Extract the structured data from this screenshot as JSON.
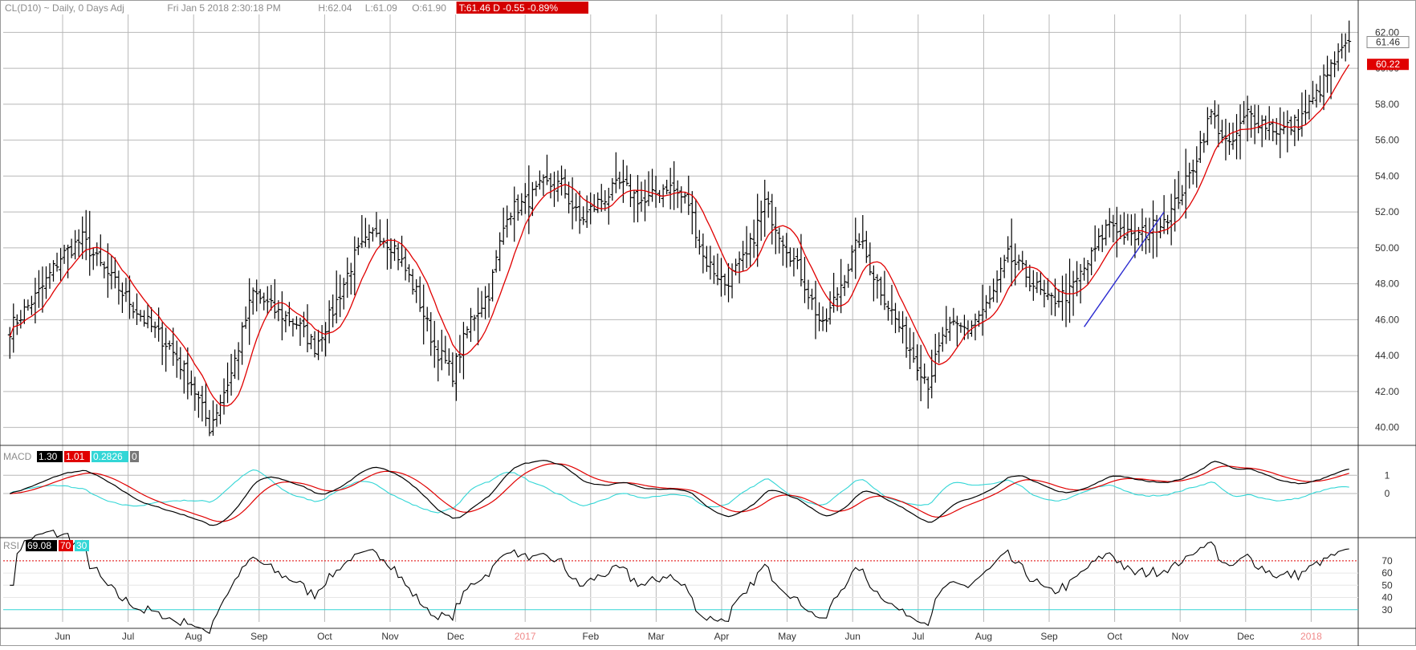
{
  "header": {
    "symbol": "CL(D10)",
    "parts": [
      {
        "text": "CL(D10) ~ Daily, 0 Days Adj",
        "color": "#8c8c8c"
      },
      {
        "text": "Fri Jan 5 2018 2:30:18 PM",
        "color": "#8c8c8c"
      },
      {
        "text": "H:62.04",
        "color": "#8c8c8c"
      },
      {
        "text": "L:61.09",
        "color": "#8c8c8c"
      },
      {
        "text": "O:61.90",
        "color": "#8c8c8c"
      },
      {
        "text": "T:61.46 D -0.55 -0.89%",
        "color": "#ffffff",
        "bg": "#d40000"
      }
    ]
  },
  "colors": {
    "bar": "#000000",
    "ma": "#e00000",
    "macd": "#000000",
    "signal": "#e00000",
    "hist": "#33d6d6",
    "rsi": "#000000",
    "rsi_level": "#e00000",
    "rsi_low": "#33d6d6",
    "grid": "#b8b8b8",
    "frame": "#9a9a9a",
    "trendline": "#2a2ad0"
  },
  "price_last_label": "61.46",
  "ma_last_label": "60.22",
  "macd_panel": {
    "label": "MACD",
    "badges": [
      {
        "text": "1.30",
        "bg": "#000000",
        "fg": "#ffffff"
      },
      {
        "text": "1.01",
        "bg": "#e00000",
        "fg": "#ffffff"
      },
      {
        "text": "0.2826",
        "bg": "#33d6d6",
        "fg": "#ffffff"
      },
      {
        "text": "0",
        "bg": "#777777",
        "fg": "#ffffff"
      }
    ],
    "ticks": [
      "1",
      "0"
    ]
  },
  "rsi_panel": {
    "label": "RSI",
    "badges": [
      {
        "text": "69.08",
        "bg": "#000000",
        "fg": "#ffffff"
      },
      {
        "text": "70",
        "bg": "#e00000",
        "fg": "#ffffff"
      },
      {
        "text": "30",
        "bg": "#33d6d6",
        "fg": "#ffffff"
      }
    ],
    "ticks": [
      "70",
      "60",
      "50",
      "40",
      "30"
    ]
  },
  "chart_data": {
    "type": "ohlc",
    "title": "",
    "ylim": [
      39,
      63
    ],
    "yticks": [
      "62.00",
      "60.00",
      "58.00",
      "56.00",
      "54.00",
      "52.00",
      "50.00",
      "48.00",
      "46.00",
      "44.00",
      "42.00",
      "40.00"
    ],
    "grid": true,
    "x_month_labels": [
      "Jun",
      "Jul",
      "Aug",
      "Sep",
      "Oct",
      "Nov",
      "Dec",
      "2017",
      "Feb",
      "Mar",
      "Apr",
      "May",
      "Jun",
      "Jul",
      "Aug",
      "Sep",
      "Oct",
      "Nov",
      "Dec",
      "2018"
    ],
    "year_label_indices": [
      7,
      19
    ],
    "anchors": [
      [
        0,
        45.5
      ],
      [
        8,
        47.5
      ],
      [
        14,
        49.5
      ],
      [
        20,
        50.5
      ],
      [
        25,
        49.0
      ],
      [
        31,
        47.5
      ],
      [
        37,
        46.0
      ],
      [
        44,
        44.5
      ],
      [
        50,
        42.5
      ],
      [
        55,
        40.0
      ],
      [
        61,
        43.0
      ],
      [
        67,
        47.5
      ],
      [
        73,
        46.5
      ],
      [
        79,
        45.8
      ],
      [
        84,
        44.5
      ],
      [
        89,
        46.5
      ],
      [
        95,
        49.5
      ],
      [
        101,
        51.0
      ],
      [
        106,
        50.0
      ],
      [
        112,
        47.5
      ],
      [
        117,
        44.5
      ],
      [
        122,
        43.0
      ],
      [
        127,
        46.0
      ],
      [
        132,
        47.5
      ],
      [
        137,
        52.0
      ],
      [
        142,
        52.5
      ],
      [
        147,
        53.5
      ],
      [
        152,
        53.5
      ],
      [
        157,
        51.5
      ],
      [
        162,
        52.5
      ],
      [
        168,
        53.5
      ],
      [
        175,
        52.5
      ],
      [
        181,
        53.5
      ],
      [
        187,
        52.5
      ],
      [
        191,
        49.5
      ],
      [
        197,
        48.0
      ],
      [
        203,
        49.5
      ],
      [
        208,
        52.5
      ],
      [
        213,
        50.5
      ],
      [
        218,
        48.5
      ],
      [
        224,
        45.5
      ],
      [
        229,
        48.0
      ],
      [
        234,
        50.5
      ],
      [
        238,
        48.5
      ],
      [
        244,
        46.0
      ],
      [
        249,
        44.0
      ],
      [
        253,
        42.5
      ],
      [
        258,
        45.5
      ],
      [
        264,
        45.5
      ],
      [
        270,
        47.0
      ],
      [
        275,
        49.5
      ],
      [
        280,
        48.5
      ],
      [
        286,
        47.0
      ],
      [
        292,
        47.5
      ],
      [
        298,
        49.5
      ],
      [
        303,
        51.5
      ],
      [
        309,
        50.5
      ],
      [
        314,
        51.0
      ],
      [
        320,
        52.0
      ],
      [
        325,
        54.0
      ],
      [
        331,
        57.5
      ],
      [
        336,
        55.5
      ],
      [
        341,
        57.5
      ],
      [
        345,
        57.0
      ],
      [
        350,
        56.5
      ],
      [
        355,
        57.0
      ],
      [
        360,
        58.5
      ],
      [
        364,
        60.0
      ],
      [
        369,
        61.5
      ]
    ],
    "ma_period": 10,
    "trendline": {
      "from": [
        296,
        45.6
      ],
      "to": [
        318,
        52.0
      ]
    },
    "macd": {
      "fast": 12,
      "slow": 26,
      "signal": 9,
      "last": 1.3,
      "signal_last": 1.01,
      "histogram_last": 0.2826
    },
    "rsi": {
      "period": 14,
      "last": 69.08,
      "levels": [
        70,
        30
      ]
    }
  }
}
